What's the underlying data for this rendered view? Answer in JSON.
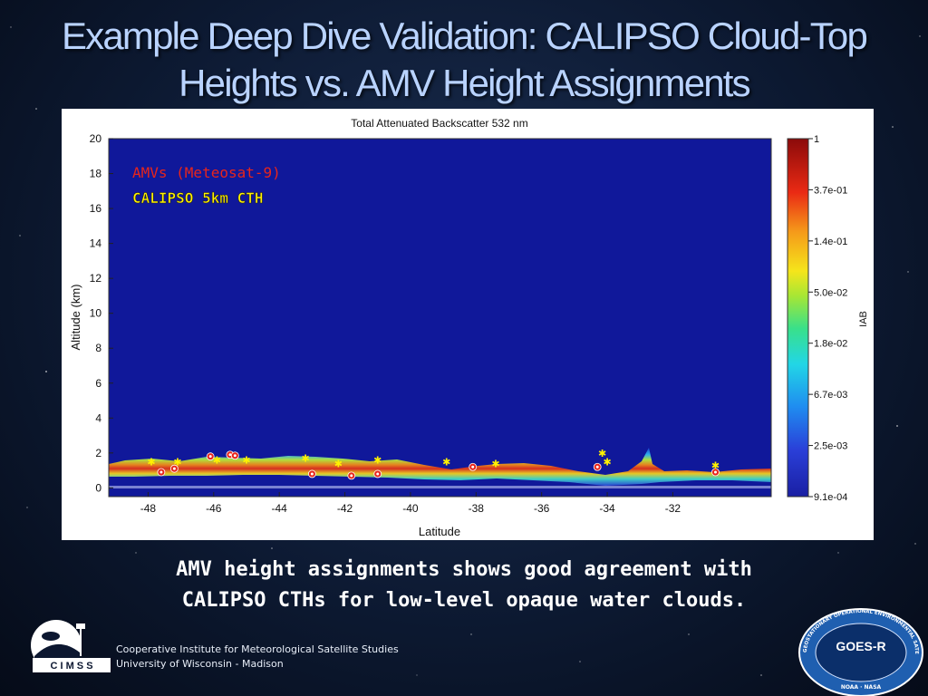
{
  "slide": {
    "title_line1": "Example Deep Dive Validation: CALIPSO Cloud-Top",
    "title_line2": "Heights vs. AMV Height Assignments",
    "caption_line1": "AMV height assignments shows good agreement with",
    "caption_line2": "CALIPSO CTHs for low-level opaque water clouds.",
    "institute_line1": "Cooperative Institute for Meteorological Satellite Studies",
    "institute_line2": "University of Wisconsin - Madison",
    "cimss_logo_text": "C I M S S",
    "goes_logo_text": "GOES-R",
    "goes_ring_text": "GEOSTATIONARY OPERATIONAL ENVIRONMENTAL SATELLITE SERIES",
    "goes_agency_text": "NOAA · NASA",
    "title_color": "#b9d3ff"
  },
  "chart_data": {
    "type": "scatter",
    "title": "Total Attenuated Backscatter 532 nm",
    "xlabel": "Latitude",
    "ylabel": "Altitude (km)",
    "xlim": [
      -49.2,
      -29.0
    ],
    "ylim": [
      -0.5,
      20
    ],
    "xticks": [
      -48,
      -46,
      -44,
      -42,
      -40,
      -38,
      -36,
      -34,
      -32
    ],
    "yticks": [
      0,
      2,
      4,
      6,
      8,
      10,
      12,
      14,
      16,
      18,
      20
    ],
    "legend": [
      {
        "label": "AMVs (Meteosat-9)",
        "color": "#e8251b"
      },
      {
        "label": "CALIPSO 5km CTH",
        "color": "#fff200"
      }
    ],
    "colorbar": {
      "label": "IAB",
      "tick_labels": [
        "1",
        "3.7e-01",
        "1.4e-01",
        "5.0e-02",
        "1.8e-02",
        "6.7e-03",
        "2.5e-03",
        "9.1e-04"
      ]
    },
    "series": [
      {
        "name": "AMVs (Meteosat-9)",
        "x": [
          -47.6,
          -47.2,
          -46.1,
          -45.5,
          -45.35,
          -43.0,
          -41.8,
          -41.0,
          -38.1,
          -34.3,
          -30.7
        ],
        "y": [
          0.9,
          1.1,
          1.8,
          1.9,
          1.85,
          0.8,
          0.7,
          0.8,
          1.2,
          1.2,
          0.9
        ]
      },
      {
        "name": "CALIPSO 5km CTH",
        "x": [
          -47.9,
          -47.1,
          -45.9,
          -45.0,
          -43.2,
          -42.2,
          -41.0,
          -38.9,
          -37.4,
          -34.15,
          -34.0,
          -30.7
        ],
        "y": [
          1.5,
          1.5,
          1.6,
          1.6,
          1.7,
          1.4,
          1.6,
          1.5,
          1.4,
          2.0,
          1.5,
          1.3
        ]
      }
    ]
  }
}
